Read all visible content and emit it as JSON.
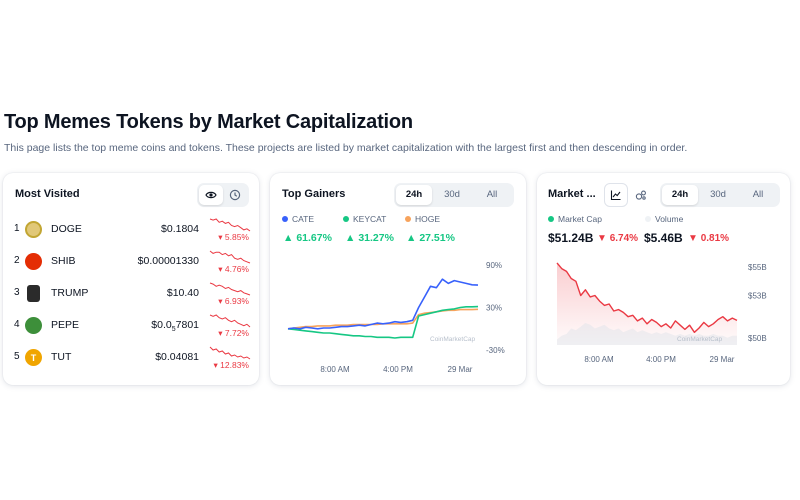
{
  "page": {
    "title": "Top Memes Tokens by Market Capitalization",
    "subtitle": "This page lists the top meme coins and tokens. These projects are listed by market capitalization with the largest first and then descending in order."
  },
  "most_visited": {
    "title": "Most Visited",
    "icons": [
      "eye-icon",
      "clock-icon"
    ],
    "items": [
      {
        "rank": "1",
        "name": "DOGE",
        "price": "$0.1804",
        "change": "5.85%",
        "logo_color": "#c2a633",
        "logo_icon": "doge-logo"
      },
      {
        "rank": "2",
        "name": "SHIB",
        "price": "$0.00001330",
        "change": "4.76%",
        "logo_color": "#e42d04",
        "logo_icon": "shib-logo"
      },
      {
        "rank": "3",
        "name": "TRUMP",
        "price": "$10.40",
        "change": "6.93%",
        "logo_color": "#2b2b2b",
        "logo_icon": "trump-logo"
      },
      {
        "rank": "4",
        "name": "PEPE",
        "price_main": "$0.0",
        "price_sub": "5",
        "price_tail": "7801",
        "change": "7.72%",
        "logo_color": "#3d8f3a",
        "logo_icon": "pepe-logo"
      },
      {
        "rank": "5",
        "name": "TUT",
        "price": "$0.04081",
        "change": "12.83%",
        "logo_color": "#f0a500",
        "logo_icon": "tut-logo"
      }
    ]
  },
  "top_gainers": {
    "title": "Top Gainers",
    "tabs": [
      "24h",
      "30d",
      "All"
    ],
    "active_tab": "24h",
    "legend": [
      {
        "name": "CATE",
        "color": "#3861fb",
        "change": "61.67%"
      },
      {
        "name": "KEYCAT",
        "color": "#16c784",
        "change": "31.27%"
      },
      {
        "name": "HOGE",
        "color": "#f7a35c",
        "change": "27.51%"
      }
    ],
    "y_ticks": [
      "90%",
      "30%",
      "-30%"
    ],
    "x_ticks": [
      "8:00 AM",
      "4:00 PM",
      "29 Mar"
    ],
    "watermark": "CoinMarketCap"
  },
  "market_cap": {
    "title": "Market ...",
    "tabs": [
      "24h",
      "30d",
      "All"
    ],
    "active_tab": "24h",
    "icons": [
      "line-chart-icon",
      "bubbles-icon"
    ],
    "legend": [
      {
        "name": "Market Cap",
        "color": "#16c784"
      },
      {
        "name": "Volume",
        "color": "#eff2f5"
      }
    ],
    "market_cap_value": "$51.24B",
    "market_cap_change": "6.74%",
    "volume_value": "$5.46B",
    "volume_change": "0.81%",
    "y_ticks": [
      "$55B",
      "$53B",
      "$50B"
    ],
    "x_ticks": [
      "8:00 AM",
      "4:00 PM",
      "29 Mar"
    ],
    "watermark": "CoinMarketCap"
  },
  "chart_data": [
    {
      "type": "line",
      "chart": "top-gainers",
      "y_unit": "%",
      "series": [
        {
          "name": "CATE",
          "color": "#3861fb",
          "values": [
            0,
            1,
            0,
            2,
            1,
            0,
            1,
            1,
            2,
            3,
            3,
            4,
            5,
            4,
            6,
            8,
            7,
            8,
            10,
            9,
            10,
            12,
            30,
            45,
            60,
            58,
            70,
            64,
            68,
            66,
            64,
            62,
            61.67
          ]
        },
        {
          "name": "KEYCAT",
          "color": "#16c784",
          "values": [
            0,
            -1,
            -2,
            -3,
            -4,
            -5,
            -6,
            -6,
            -7,
            -8,
            -9,
            -10,
            -10,
            -11,
            -11,
            -12,
            -12,
            -12,
            -13,
            -12,
            -12,
            -12,
            18,
            20,
            22,
            24,
            26,
            27,
            28,
            30,
            31,
            31,
            31.27
          ]
        },
        {
          "name": "HOGE",
          "color": "#f7a35c",
          "values": [
            0,
            1,
            2,
            3,
            3,
            4,
            4,
            4,
            5,
            5,
            5,
            6,
            6,
            6,
            6,
            6,
            7,
            7,
            7,
            7,
            7,
            8,
            20,
            22,
            23,
            24,
            25,
            26,
            26,
            27,
            27,
            27,
            27.51
          ]
        }
      ]
    },
    {
      "type": "area",
      "chart": "meme-market-cap",
      "y_unit": "$B",
      "ylim": [
        49.5,
        56
      ],
      "series": [
        {
          "name": "Market Cap",
          "color": "#ea3943",
          "values": [
            55.3,
            54.9,
            54.7,
            54.2,
            54.0,
            53.0,
            53.4,
            52.9,
            53.0,
            52.6,
            52.3,
            52.4,
            51.9,
            52.0,
            51.8,
            51.5,
            51.6,
            51.2,
            51.4,
            51.0,
            51.3,
            51.1,
            50.8,
            51.0,
            50.7,
            51.2,
            50.9,
            50.6,
            50.9,
            50.4,
            50.7,
            51.1,
            50.8,
            51.0,
            51.3,
            51.5,
            51.2,
            51.4,
            51.24
          ]
        },
        {
          "name": "Volume",
          "color": "#dfe3ea",
          "values": [
            0.3,
            0.5,
            0.6,
            0.9,
            0.8,
            1.0,
            1.2,
            1.1,
            0.9,
            1.0,
            1.1,
            0.9,
            0.8,
            0.9,
            0.7,
            0.8,
            0.9,
            0.7,
            0.8,
            0.7,
            0.6,
            0.7,
            0.6,
            0.7,
            0.6,
            0.5,
            0.6,
            0.5,
            0.6,
            0.5,
            0.6,
            0.5,
            0.5,
            0.6,
            0.5,
            0.5,
            0.4,
            0.5,
            0.5
          ]
        }
      ]
    }
  ]
}
